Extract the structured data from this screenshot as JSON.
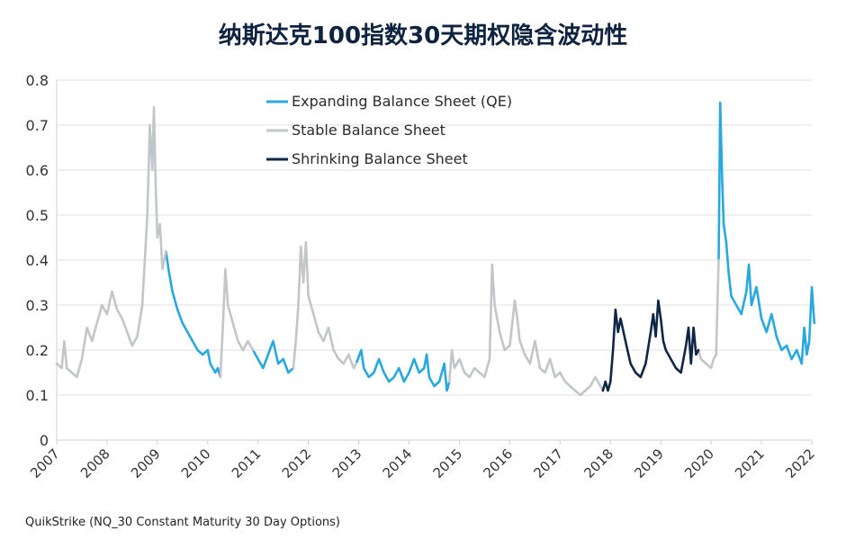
{
  "chart_data": {
    "type": "line",
    "title": "纳斯达克100指数30天期权隐含波动性",
    "source": "QuikStrike (NQ_30 Constant Maturity 30 Day Options)",
    "ylim": [
      0,
      0.8
    ],
    "y_ticks": [
      "0",
      "0.1",
      "0.2",
      "0.3",
      "0.4",
      "0.5",
      "0.6",
      "0.7",
      "0.8"
    ],
    "x_range": [
      2007,
      2022
    ],
    "x_ticks": [
      "2007",
      "2008",
      "2009",
      "2010",
      "2011",
      "2012",
      "2013",
      "2014",
      "2015",
      "2016",
      "2017",
      "2018",
      "2019",
      "2020",
      "2021",
      "2022"
    ],
    "grid": true,
    "legend_position": "top-center",
    "series": [
      {
        "name": "Expanding Balance Sheet (QE)",
        "color": "#29a8df",
        "segments": [
          [
            [
              2009.17,
              0.42
            ],
            [
              2009.22,
              0.38
            ],
            [
              2009.3,
              0.33
            ],
            [
              2009.4,
              0.29
            ],
            [
              2009.5,
              0.26
            ],
            [
              2009.6,
              0.24
            ],
            [
              2009.7,
              0.22
            ],
            [
              2009.8,
              0.2
            ],
            [
              2009.9,
              0.19
            ],
            [
              2010.0,
              0.2
            ],
            [
              2010.05,
              0.17
            ],
            [
              2010.1,
              0.16
            ],
            [
              2010.15,
              0.15
            ],
            [
              2010.2,
              0.16
            ],
            [
              2010.25,
              0.14
            ]
          ],
          [
            [
              2010.9,
              0.2
            ],
            [
              2011.0,
              0.18
            ],
            [
              2011.1,
              0.16
            ],
            [
              2011.2,
              0.19
            ],
            [
              2011.3,
              0.22
            ],
            [
              2011.4,
              0.17
            ],
            [
              2011.5,
              0.18
            ],
            [
              2011.6,
              0.15
            ],
            [
              2011.7,
              0.16
            ]
          ],
          [
            [
              2012.95,
              0.17
            ],
            [
              2013.05,
              0.2
            ],
            [
              2013.1,
              0.16
            ],
            [
              2013.2,
              0.14
            ],
            [
              2013.3,
              0.15
            ],
            [
              2013.4,
              0.18
            ],
            [
              2013.5,
              0.15
            ],
            [
              2013.6,
              0.13
            ],
            [
              2013.7,
              0.14
            ],
            [
              2013.8,
              0.16
            ],
            [
              2013.9,
              0.13
            ],
            [
              2014.0,
              0.15
            ],
            [
              2014.1,
              0.18
            ],
            [
              2014.2,
              0.15
            ],
            [
              2014.3,
              0.16
            ],
            [
              2014.35,
              0.19
            ],
            [
              2014.4,
              0.14
            ],
            [
              2014.5,
              0.12
            ],
            [
              2014.6,
              0.13
            ],
            [
              2014.7,
              0.17
            ],
            [
              2014.75,
              0.11
            ],
            [
              2014.8,
              0.13
            ]
          ],
          [
            [
              2020.15,
              0.4
            ],
            [
              2020.18,
              0.75
            ],
            [
              2020.22,
              0.58
            ],
            [
              2020.25,
              0.48
            ],
            [
              2020.3,
              0.44
            ],
            [
              2020.35,
              0.37
            ],
            [
              2020.4,
              0.32
            ],
            [
              2020.5,
              0.3
            ],
            [
              2020.6,
              0.28
            ],
            [
              2020.7,
              0.33
            ],
            [
              2020.75,
              0.39
            ],
            [
              2020.8,
              0.3
            ],
            [
              2020.9,
              0.34
            ],
            [
              2021.0,
              0.27
            ],
            [
              2021.1,
              0.24
            ],
            [
              2021.2,
              0.28
            ],
            [
              2021.3,
              0.23
            ],
            [
              2021.4,
              0.2
            ],
            [
              2021.5,
              0.21
            ],
            [
              2021.6,
              0.18
            ],
            [
              2021.7,
              0.2
            ],
            [
              2021.8,
              0.17
            ],
            [
              2021.85,
              0.25
            ],
            [
              2021.9,
              0.19
            ],
            [
              2021.95,
              0.22
            ],
            [
              2022.0,
              0.34
            ],
            [
              2022.05,
              0.26
            ]
          ]
        ]
      },
      {
        "name": "Stable Balance Sheet",
        "color": "#c2c6c9",
        "segments": [
          [
            [
              2007.0,
              0.17
            ],
            [
              2007.1,
              0.16
            ],
            [
              2007.15,
              0.22
            ],
            [
              2007.2,
              0.16
            ],
            [
              2007.3,
              0.15
            ],
            [
              2007.4,
              0.14
            ],
            [
              2007.5,
              0.18
            ],
            [
              2007.6,
              0.25
            ],
            [
              2007.7,
              0.22
            ],
            [
              2007.8,
              0.26
            ],
            [
              2007.9,
              0.3
            ],
            [
              2008.0,
              0.28
            ],
            [
              2008.1,
              0.33
            ],
            [
              2008.2,
              0.29
            ],
            [
              2008.3,
              0.27
            ],
            [
              2008.4,
              0.24
            ],
            [
              2008.5,
              0.21
            ],
            [
              2008.6,
              0.23
            ],
            [
              2008.7,
              0.3
            ],
            [
              2008.75,
              0.4
            ],
            [
              2008.8,
              0.5
            ],
            [
              2008.85,
              0.7
            ],
            [
              2008.9,
              0.6
            ],
            [
              2008.93,
              0.74
            ],
            [
              2008.97,
              0.55
            ],
            [
              2009.0,
              0.45
            ],
            [
              2009.05,
              0.48
            ],
            [
              2009.1,
              0.38
            ],
            [
              2009.17,
              0.42
            ]
          ],
          [
            [
              2010.25,
              0.14
            ],
            [
              2010.3,
              0.25
            ],
            [
              2010.35,
              0.38
            ],
            [
              2010.4,
              0.3
            ],
            [
              2010.5,
              0.26
            ],
            [
              2010.6,
              0.22
            ],
            [
              2010.7,
              0.2
            ],
            [
              2010.8,
              0.22
            ],
            [
              2010.9,
              0.2
            ]
          ],
          [
            [
              2011.7,
              0.16
            ],
            [
              2011.75,
              0.22
            ],
            [
              2011.8,
              0.3
            ],
            [
              2011.85,
              0.43
            ],
            [
              2011.9,
              0.35
            ],
            [
              2011.95,
              0.44
            ],
            [
              2012.0,
              0.32
            ],
            [
              2012.1,
              0.28
            ],
            [
              2012.2,
              0.24
            ],
            [
              2012.3,
              0.22
            ],
            [
              2012.4,
              0.25
            ],
            [
              2012.5,
              0.2
            ],
            [
              2012.6,
              0.18
            ],
            [
              2012.7,
              0.17
            ],
            [
              2012.8,
              0.19
            ],
            [
              2012.9,
              0.16
            ],
            [
              2012.95,
              0.17
            ]
          ],
          [
            [
              2014.8,
              0.13
            ],
            [
              2014.85,
              0.2
            ],
            [
              2014.9,
              0.16
            ],
            [
              2015.0,
              0.18
            ],
            [
              2015.1,
              0.15
            ],
            [
              2015.2,
              0.14
            ],
            [
              2015.3,
              0.16
            ],
            [
              2015.4,
              0.15
            ],
            [
              2015.5,
              0.14
            ],
            [
              2015.6,
              0.18
            ],
            [
              2015.65,
              0.39
            ],
            [
              2015.7,
              0.3
            ],
            [
              2015.8,
              0.24
            ],
            [
              2015.9,
              0.2
            ],
            [
              2016.0,
              0.21
            ],
            [
              2016.1,
              0.31
            ],
            [
              2016.15,
              0.27
            ],
            [
              2016.2,
              0.22
            ],
            [
              2016.3,
              0.19
            ],
            [
              2016.4,
              0.17
            ],
            [
              2016.5,
              0.22
            ],
            [
              2016.6,
              0.16
            ],
            [
              2016.7,
              0.15
            ],
            [
              2016.8,
              0.18
            ],
            [
              2016.9,
              0.14
            ],
            [
              2017.0,
              0.15
            ],
            [
              2017.1,
              0.13
            ],
            [
              2017.2,
              0.12
            ],
            [
              2017.3,
              0.11
            ],
            [
              2017.4,
              0.1
            ],
            [
              2017.5,
              0.11
            ],
            [
              2017.6,
              0.12
            ],
            [
              2017.7,
              0.14
            ],
            [
              2017.8,
              0.12
            ],
            [
              2017.85,
              0.11
            ]
          ],
          [
            [
              2019.75,
              0.2
            ],
            [
              2019.8,
              0.18
            ],
            [
              2019.9,
              0.17
            ],
            [
              2020.0,
              0.16
            ],
            [
              2020.05,
              0.18
            ],
            [
              2020.1,
              0.19
            ],
            [
              2020.15,
              0.4
            ]
          ]
        ]
      },
      {
        "name": "Shrinking Balance Sheet",
        "color": "#0f2745",
        "segments": [
          [
            [
              2017.85,
              0.11
            ],
            [
              2017.9,
              0.13
            ],
            [
              2017.95,
              0.11
            ],
            [
              2018.0,
              0.13
            ],
            [
              2018.05,
              0.2
            ],
            [
              2018.1,
              0.29
            ],
            [
              2018.15,
              0.24
            ],
            [
              2018.2,
              0.27
            ],
            [
              2018.3,
              0.22
            ],
            [
              2018.4,
              0.17
            ],
            [
              2018.5,
              0.15
            ],
            [
              2018.6,
              0.14
            ],
            [
              2018.7,
              0.17
            ],
            [
              2018.8,
              0.24
            ],
            [
              2018.85,
              0.28
            ],
            [
              2018.9,
              0.23
            ],
            [
              2018.95,
              0.31
            ],
            [
              2019.0,
              0.27
            ],
            [
              2019.05,
              0.22
            ],
            [
              2019.1,
              0.2
            ],
            [
              2019.2,
              0.18
            ],
            [
              2019.3,
              0.16
            ],
            [
              2019.4,
              0.15
            ],
            [
              2019.5,
              0.21
            ],
            [
              2019.55,
              0.25
            ],
            [
              2019.6,
              0.17
            ],
            [
              2019.65,
              0.25
            ],
            [
              2019.7,
              0.19
            ],
            [
              2019.75,
              0.2
            ]
          ]
        ]
      }
    ]
  }
}
